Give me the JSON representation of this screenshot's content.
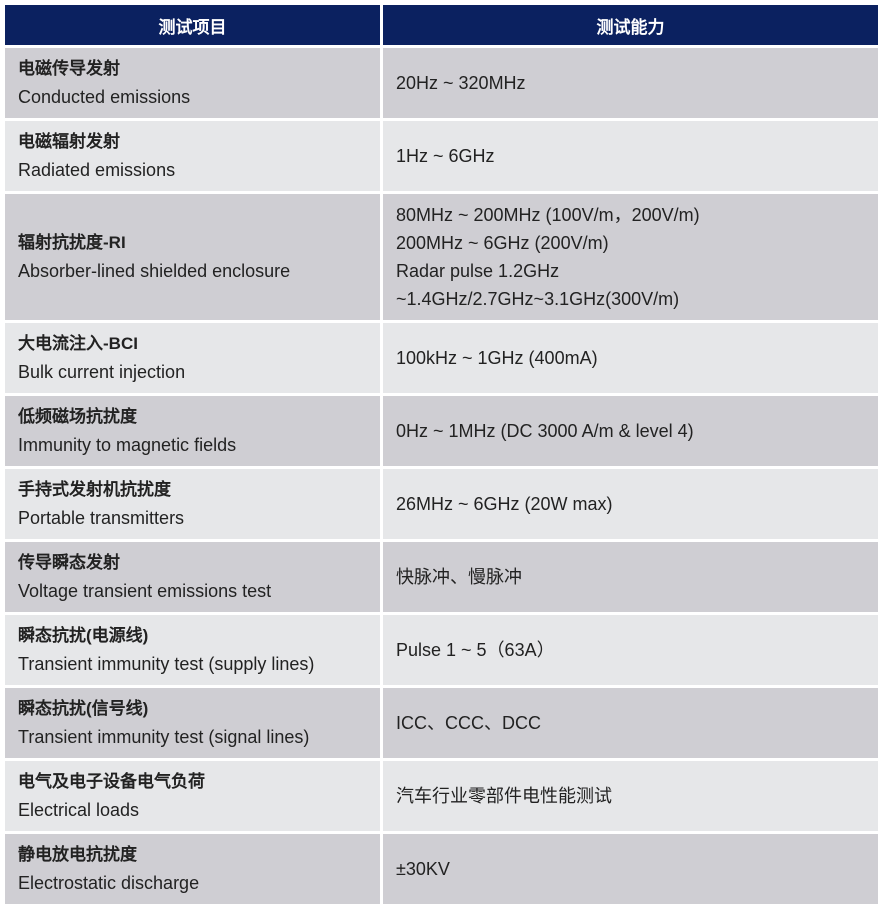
{
  "header": {
    "col1": "测试项目",
    "col2": "测试能力"
  },
  "rows": [
    {
      "cn": "电磁传导发射",
      "en": "Conducted emissions",
      "capability": [
        "20Hz ~ 320MHz"
      ]
    },
    {
      "cn": "电磁辐射发射",
      "en": "Radiated emissions",
      "capability": [
        "1Hz ~ 6GHz"
      ]
    },
    {
      "cn": "辐射抗扰度-RI",
      "en": "Absorber-lined shielded enclosure",
      "capability": [
        "80MHz ~ 200MHz (100V/m，200V/m)",
        "200MHz ~ 6GHz (200V/m)",
        "Radar pulse 1.2GHz",
        "~1.4GHz/2.7GHz~3.1GHz(300V/m)"
      ]
    },
    {
      "cn": "大电流注入-BCI",
      "en": "Bulk current injection",
      "capability": [
        "100kHz ~ 1GHz (400mA)"
      ]
    },
    {
      "cn": "低频磁场抗扰度",
      "en": "Immunity to magnetic fields",
      "capability": [
        "0Hz ~ 1MHz (DC 3000 A/m & level 4)"
      ]
    },
    {
      "cn": "手持式发射机抗扰度",
      "en": "Portable transmitters",
      "capability": [
        "26MHz ~ 6GHz (20W max)"
      ]
    },
    {
      "cn": "传导瞬态发射",
      "en": "Voltage transient emissions test",
      "capability": [
        "快脉冲、慢脉冲"
      ]
    },
    {
      "cn": "瞬态抗扰(电源线)",
      "en": "Transient immunity test (supply lines)",
      "capability": [
        "Pulse 1 ~ 5（63A）"
      ]
    },
    {
      "cn": "瞬态抗扰(信号线)",
      "en": "Transient immunity test (signal lines)",
      "capability": [
        "ICC、CCC、DCC"
      ]
    },
    {
      "cn": "电气及电子设备电气负荷",
      "en": "Electrical loads",
      "capability": [
        "汽车行业零部件电性能测试"
      ]
    },
    {
      "cn": "静电放电抗扰度",
      "en": "Electrostatic discharge",
      "capability": [
        "±30KV"
      ]
    }
  ],
  "colors": {
    "header": "#0b2160",
    "row_dark": "#cfced3",
    "row_light": "#e6e7e9"
  }
}
